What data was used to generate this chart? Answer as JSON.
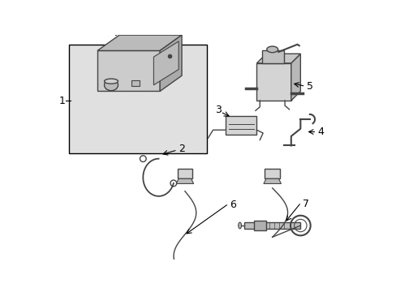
{
  "background_color": "#ffffff",
  "line_color": "#444444",
  "text_color": "#000000",
  "box_fill": "#e8e8e8",
  "part_fill": "#d4d4d4",
  "fig_width": 4.89,
  "fig_height": 3.6,
  "dpi": 100
}
